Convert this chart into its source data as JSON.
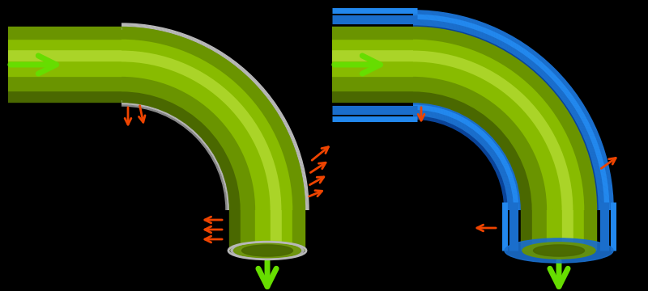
{
  "background_color": "#000000",
  "tube_green_dark": "#4a6800",
  "tube_green_mid1": "#6a9400",
  "tube_green_mid2": "#88bb00",
  "tube_green_light": "#aad428",
  "tube_green_highlight": "#c8e850",
  "gray_outer": "#b8b8b8",
  "gray_dark": "#888888",
  "blue_outer": "#1a6ecc",
  "blue_mid": "#2288ee",
  "blue_light": "#55aaff",
  "blue_dark": "#0a4499",
  "arrow_green": "#66dd00",
  "arrow_orange": "#ee4400",
  "figsize": [
    8.0,
    3.6
  ],
  "dpi": 100
}
